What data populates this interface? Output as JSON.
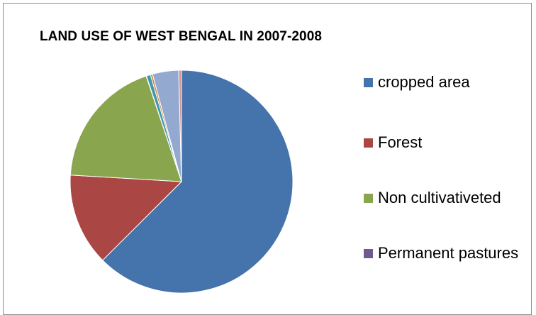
{
  "chart_data": {
    "type": "pie",
    "title": "LAND USE OF WEST BENGAL IN 2007-2008",
    "slices": [
      {
        "name": "cropped area",
        "value": 62.5,
        "color": "#4573ac"
      },
      {
        "name": "Forest",
        "value": 13.4,
        "color": "#aa4643"
      },
      {
        "name": "Non cultivativeted",
        "value": 18.9,
        "color": "#89a54e"
      },
      {
        "name": "Permanent pastures",
        "value": 0.05,
        "color": "#71588f"
      },
      {
        "name": "",
        "value": 0.6,
        "color": "#4198af"
      },
      {
        "name": "",
        "value": 0.3,
        "color": "#db843d"
      },
      {
        "name": "",
        "value": 3.8,
        "color": "#93a9cf"
      },
      {
        "name": "",
        "value": 0.4,
        "color": "#d19392"
      }
    ],
    "legend": {
      "placement": "right",
      "entries": [
        "cropped area",
        "Forest",
        "Non cultivativeted",
        "Permanent pastures"
      ]
    }
  }
}
